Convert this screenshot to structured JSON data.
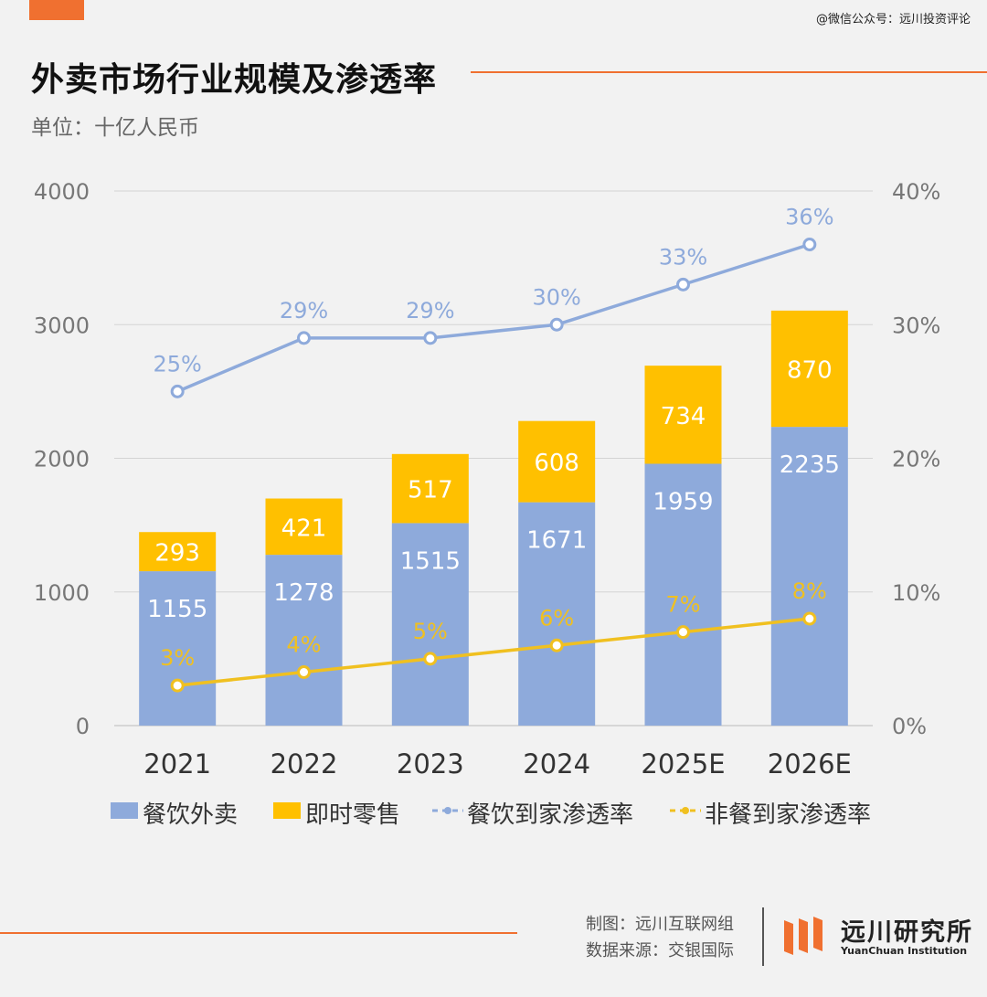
{
  "watermark": "@微信公众号：远川投资评论",
  "title": "外卖市场行业规模及渗透率",
  "unit": "单位：十亿人民币",
  "credits": {
    "made_by": "制图：远川互联网组",
    "source": "数据来源：交银国际"
  },
  "logo": {
    "cn": "远川研究所",
    "en": "YuanChuan Institution"
  },
  "colors": {
    "food": "#8eaadb",
    "retail": "#ffc000",
    "food_rate": "#8eaadb",
    "nonfood_rate": "#f0c020",
    "accent": "#f07030"
  },
  "chart_data": {
    "type": "bar",
    "stacked": true,
    "categories": [
      "2021",
      "2022",
      "2023",
      "2024",
      "2025E",
      "2026E"
    ],
    "series": [
      {
        "name": "餐饮外卖",
        "type": "bar",
        "axis": "left",
        "values": [
          1155,
          1278,
          1515,
          1671,
          1959,
          2235
        ]
      },
      {
        "name": "即时零售",
        "type": "bar",
        "axis": "left",
        "values": [
          293,
          421,
          517,
          608,
          734,
          870
        ]
      },
      {
        "name": "餐饮到家渗透率",
        "type": "line",
        "axis": "right",
        "values": [
          25,
          29,
          29,
          30,
          33,
          36
        ],
        "labels": [
          "25%",
          "29%",
          "29%",
          "30%",
          "33%",
          "36%"
        ]
      },
      {
        "name": "非餐到家渗透率",
        "type": "line",
        "axis": "right",
        "values": [
          3,
          4,
          5,
          6,
          7,
          8
        ],
        "labels": [
          "3%",
          "4%",
          "5%",
          "6%",
          "7%",
          "8%"
        ]
      }
    ],
    "ylim": [
      0,
      4000
    ],
    "yticks": [
      "0",
      "1000",
      "2000",
      "3000",
      "4000"
    ],
    "y2lim": [
      0,
      40
    ],
    "y2ticks": [
      "0%",
      "10%",
      "20%",
      "30%",
      "40%"
    ],
    "grid": true,
    "legend": "bottom"
  }
}
